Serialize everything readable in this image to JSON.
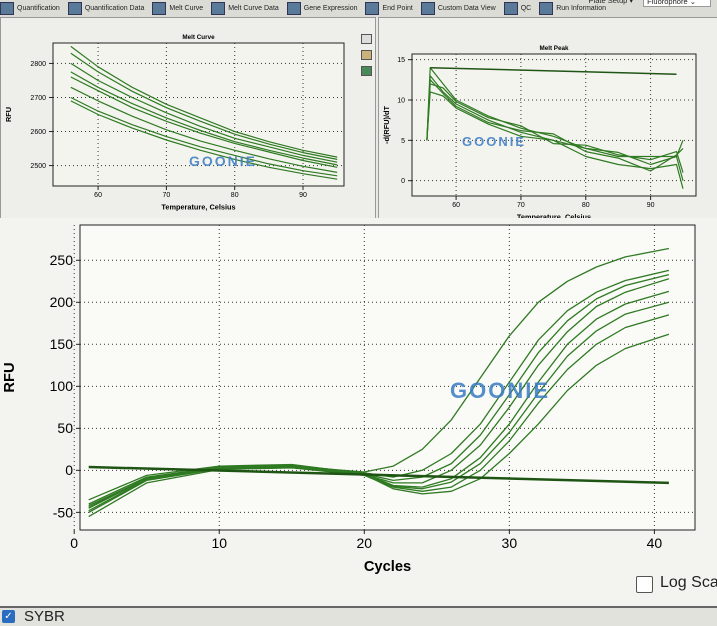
{
  "toolbar": {
    "tabs": [
      {
        "label": "Quantification",
        "icon": "chart-icon"
      },
      {
        "label": "Quantification Data",
        "icon": "table-chart-icon"
      },
      {
        "label": "Melt Curve",
        "icon": "peak-icon"
      },
      {
        "label": "Melt Curve Data",
        "icon": "peak-table-icon"
      },
      {
        "label": "Gene Expression",
        "icon": "bar-chart-icon"
      },
      {
        "label": "End Point",
        "icon": "end-point-icon"
      },
      {
        "label": "Custom Data View",
        "icon": "gear-icon"
      },
      {
        "label": "QC",
        "icon": "qc-icon"
      },
      {
        "label": "Run Information",
        "icon": "info-icon"
      }
    ],
    "plate_setup": "Plate Setup",
    "fluorophore": "Fluorophore"
  },
  "watermark": "GOONIE",
  "colors": {
    "curve": "#2f7a22",
    "threshold": "#1f5514",
    "watermark": "#3a7cc4"
  },
  "log_scale": {
    "label": "Log Scale",
    "checked": false
  },
  "fluor": {
    "label": "SYBR",
    "checked": true
  },
  "chart_data": [
    {
      "type": "line",
      "title": "Melt Curve",
      "xlabel": "Temperature, Celsius",
      "ylabel": "RFU",
      "xlim": [
        53.4,
        96
      ],
      "ylim": [
        2440,
        2860
      ],
      "xticks": [
        60,
        70,
        80,
        90
      ],
      "yticks": [
        2500,
        2600,
        2700,
        2800
      ],
      "grid": true,
      "x": [
        56,
        60,
        65,
        70,
        75,
        80,
        85,
        90,
        95
      ],
      "series": [
        {
          "values": [
            2850,
            2790,
            2730,
            2680,
            2640,
            2600,
            2570,
            2545,
            2525
          ]
        },
        {
          "values": [
            2830,
            2775,
            2718,
            2670,
            2630,
            2592,
            2563,
            2538,
            2518
          ]
        },
        {
          "values": [
            2800,
            2750,
            2700,
            2655,
            2615,
            2580,
            2555,
            2530,
            2510
          ]
        },
        {
          "values": [
            2775,
            2730,
            2682,
            2640,
            2603,
            2570,
            2545,
            2522,
            2502
          ]
        },
        {
          "values": [
            2760,
            2720,
            2670,
            2630,
            2595,
            2565,
            2540,
            2515,
            2495
          ]
        },
        {
          "values": [
            2730,
            2690,
            2645,
            2605,
            2572,
            2545,
            2520,
            2498,
            2480
          ]
        },
        {
          "values": [
            2700,
            2660,
            2620,
            2585,
            2555,
            2530,
            2505,
            2485,
            2470
          ]
        },
        {
          "values": [
            2690,
            2650,
            2610,
            2575,
            2545,
            2518,
            2495,
            2476,
            2460
          ]
        }
      ]
    },
    {
      "type": "line",
      "title": "Melt Peak",
      "xlabel": "Temperature, Celsius",
      "ylabel": "-d(RFU)/dT",
      "xlim": [
        53.2,
        97
      ],
      "ylim": [
        -1.9,
        15.7
      ],
      "xticks": [
        60,
        70,
        80,
        90
      ],
      "yticks": [
        0,
        5,
        10,
        15
      ],
      "grid": true,
      "x": [
        55.5,
        56,
        58,
        60,
        65,
        70,
        75,
        80,
        85,
        90,
        94,
        95
      ],
      "series": [
        {
          "values": [
            5,
            14,
            12,
            10,
            8,
            6.5,
            5.5,
            4,
            3,
            3,
            3,
            5
          ]
        },
        {
          "values": [
            5,
            13,
            11,
            9.5,
            7.5,
            6,
            5,
            4,
            3.5,
            2,
            3,
            0
          ]
        },
        {
          "values": [
            5,
            12,
            11.5,
            9.8,
            7.8,
            6.8,
            4.6,
            4.4,
            3.2,
            2.6,
            3.6,
            1
          ]
        },
        {
          "values": [
            5,
            11,
            10.5,
            9,
            7,
            5.5,
            5,
            3,
            2,
            1.5,
            2,
            -1
          ]
        },
        {
          "values": [
            5,
            12.5,
            10.8,
            9.2,
            7.2,
            6.2,
            5.8,
            3.6,
            2.8,
            1.2,
            3.2,
            4
          ]
        }
      ],
      "flat_line": {
        "x": [
          56,
          94
        ],
        "values": [
          14,
          13.2
        ]
      }
    },
    {
      "type": "line",
      "title": "",
      "xlabel": "Cycles",
      "ylabel": "RFU",
      "xlim": [
        0.4,
        42.8
      ],
      "ylim": [
        -71,
        292
      ],
      "xticks": [
        0,
        10,
        20,
        30,
        40
      ],
      "yticks": [
        -50,
        0,
        50,
        100,
        150,
        200,
        250
      ],
      "grid": true,
      "x": [
        1,
        5,
        10,
        15,
        20,
        22,
        24,
        26,
        28,
        30,
        32,
        34,
        36,
        38,
        41
      ],
      "series": [
        {
          "values": [
            -45,
            -10,
            3,
            5,
            -2,
            5,
            25,
            60,
            110,
            160,
            200,
            225,
            242,
            254,
            264
          ]
        },
        {
          "values": [
            -40,
            -8,
            4,
            6,
            -3,
            -8,
            0,
            20,
            55,
            105,
            155,
            190,
            212,
            226,
            238
          ]
        },
        {
          "values": [
            -48,
            -11,
            3,
            5,
            -4,
            -12,
            -8,
            8,
            42,
            90,
            140,
            178,
            204,
            220,
            233
          ]
        },
        {
          "values": [
            -50,
            -12,
            2,
            4,
            -5,
            -15,
            -15,
            0,
            30,
            75,
            125,
            165,
            195,
            212,
            228
          ]
        },
        {
          "values": [
            -35,
            -6,
            5,
            7,
            -4,
            -18,
            -20,
            -10,
            15,
            55,
            105,
            150,
            180,
            198,
            213
          ]
        },
        {
          "values": [
            -44,
            -9,
            3,
            6,
            -4,
            -19,
            -22,
            -14,
            8,
            45,
            92,
            136,
            166,
            186,
            200
          ]
        },
        {
          "values": [
            -55,
            -15,
            1,
            3,
            -6,
            -20,
            -25,
            -20,
            0,
            35,
            80,
            120,
            150,
            170,
            185
          ]
        },
        {
          "values": [
            -42,
            -10,
            3,
            5,
            -5,
            -22,
            -28,
            -25,
            -10,
            20,
            55,
            95,
            125,
            145,
            162
          ]
        }
      ],
      "threshold": {
        "x": [
          1,
          41
        ],
        "values": [
          4,
          -15
        ]
      }
    }
  ]
}
